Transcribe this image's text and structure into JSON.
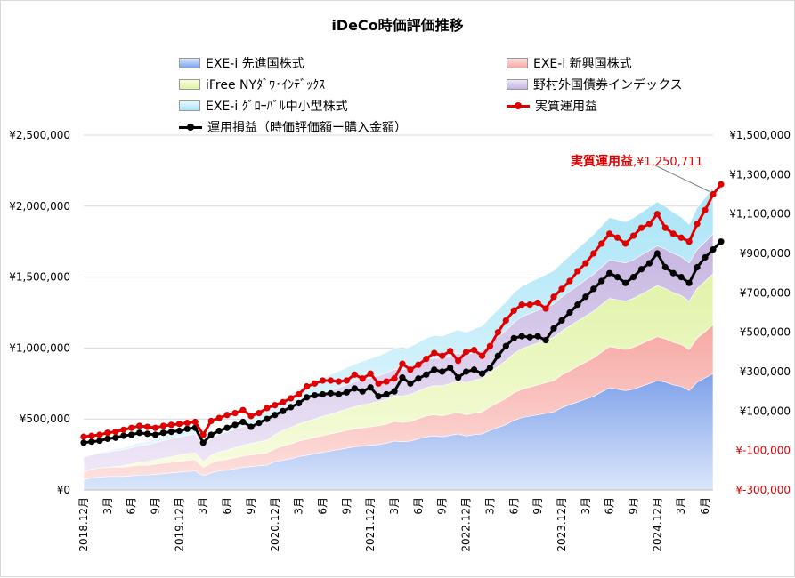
{
  "chart_data": {
    "type": "area",
    "title": "iDeCo時価評価推移",
    "x": [
      "2018.12月",
      "1",
      "2",
      "3月",
      "4",
      "5",
      "6月",
      "7",
      "8",
      "9月",
      "10",
      "11",
      "2019.12月",
      "1",
      "2",
      "3月",
      "4",
      "5",
      "6月",
      "7",
      "8",
      "9月",
      "10",
      "11",
      "2020.12月",
      "1",
      "2",
      "3月",
      "4",
      "5",
      "6月",
      "7",
      "8",
      "9月",
      "10",
      "11",
      "2021.12月",
      "1",
      "2",
      "3月",
      "4",
      "5",
      "6月",
      "7",
      "8",
      "9月",
      "10",
      "11",
      "2022.12月",
      "1",
      "2",
      "3月",
      "4",
      "5",
      "6月",
      "7",
      "8",
      "9月",
      "10",
      "11",
      "2023.12月",
      "1",
      "2",
      "3月",
      "4",
      "5",
      "6月",
      "7",
      "8",
      "9月",
      "10",
      "11",
      "2024.12月",
      "1",
      "2",
      "3月",
      "4",
      "5",
      "6月",
      "7"
    ],
    "x_tick_labels": [
      "2018.12月",
      "3月",
      "6月",
      "9月",
      "2019.12月",
      "3月",
      "6月",
      "9月",
      "2020.12月",
      "3月",
      "6月",
      "9月",
      "2021.12月",
      "3月",
      "6月",
      "9月",
      "2022.12月",
      "3月",
      "6月",
      "9月",
      "2023.12月",
      "3月",
      "6月",
      "9月",
      "2024.12月",
      "3月",
      "6月"
    ],
    "y_left": {
      "min": 0,
      "max": 2500000,
      "ticks": [
        "¥0",
        "¥500,000",
        "¥1,000,000",
        "¥1,500,000",
        "¥2,000,000",
        "¥2,500,000"
      ]
    },
    "y_right": {
      "min": -300000,
      "max": 1500000,
      "ticks": [
        "¥-300,000",
        "¥-100,000",
        "¥100,000",
        "¥300,000",
        "¥500,000",
        "¥700,000",
        "¥900,000",
        "¥1,100,000",
        "¥1,300,000",
        "¥1,500,000"
      ],
      "negative_color": "#e00000"
    },
    "grid": true,
    "legend_position": "top",
    "stacked_series": [
      {
        "name": "EXE-i 先進国株式",
        "color_top": "#dbe6fb",
        "color_bottom": "#7ea1ea",
        "values": [
          70000,
          85000,
          90000,
          95000,
          95000,
          95000,
          100000,
          105000,
          105000,
          110000,
          115000,
          120000,
          125000,
          130000,
          135000,
          100000,
          120000,
          135000,
          140000,
          150000,
          160000,
          165000,
          170000,
          175000,
          200000,
          210000,
          220000,
          235000,
          245000,
          255000,
          265000,
          275000,
          285000,
          295000,
          305000,
          310000,
          315000,
          320000,
          330000,
          345000,
          340000,
          345000,
          360000,
          375000,
          380000,
          375000,
          385000,
          395000,
          380000,
          390000,
          395000,
          420000,
          440000,
          460000,
          490000,
          510000,
          520000,
          530000,
          540000,
          550000,
          580000,
          600000,
          620000,
          640000,
          660000,
          690000,
          720000,
          710000,
          700000,
          710000,
          730000,
          750000,
          770000,
          760000,
          740000,
          730000,
          700000,
          760000,
          790000,
          820000,
          850000
        ]
      },
      {
        "name": "EXE-i 新興国株式",
        "color_top": "#fde0de",
        "color_bottom": "#f7a8a4",
        "values": [
          60000,
          62000,
          65000,
          65000,
          66000,
          67000,
          68000,
          70000,
          70000,
          72000,
          74000,
          75000,
          76000,
          78000,
          78000,
          60000,
          70000,
          73000,
          75000,
          78000,
          80000,
          82000,
          84000,
          86000,
          90000,
          100000,
          105000,
          110000,
          112000,
          115000,
          118000,
          120000,
          122000,
          124000,
          126000,
          128000,
          130000,
          132000,
          134000,
          138000,
          136000,
          138000,
          142000,
          146000,
          150000,
          148000,
          150000,
          152000,
          150000,
          152000,
          155000,
          165000,
          175000,
          185000,
          195000,
          200000,
          205000,
          210000,
          215000,
          220000,
          230000,
          240000,
          250000,
          260000,
          270000,
          280000,
          290000,
          290000,
          290000,
          295000,
          300000,
          305000,
          310000,
          305000,
          300000,
          295000,
          290000,
          310000,
          325000,
          345000,
          360000
        ]
      },
      {
        "name": "iFree NYﾀﾞｳ･ｲﾝﾃﾞｯｸｽ",
        "color_top": "#f7fcdf",
        "color_bottom": "#e1f3a8",
        "values": [
          0,
          0,
          0,
          0,
          5000,
          10000,
          15000,
          20000,
          25000,
          30000,
          35000,
          40000,
          45000,
          48000,
          48000,
          40000,
          55000,
          60000,
          65000,
          70000,
          75000,
          80000,
          85000,
          90000,
          100000,
          110000,
          115000,
          120000,
          125000,
          130000,
          135000,
          140000,
          145000,
          150000,
          155000,
          160000,
          165000,
          170000,
          175000,
          180000,
          185000,
          190000,
          195000,
          200000,
          205000,
          210000,
          215000,
          220000,
          225000,
          230000,
          235000,
          245000,
          255000,
          265000,
          275000,
          285000,
          290000,
          295000,
          300000,
          305000,
          310000,
          315000,
          320000,
          325000,
          330000,
          335000,
          340000,
          340000,
          340000,
          345000,
          350000,
          355000,
          360000,
          355000,
          350000,
          345000,
          340000,
          350000,
          355000,
          360000,
          365000
        ]
      },
      {
        "name": "野村外国債券インデックス",
        "color_top": "#efe7f7",
        "color_bottom": "#c5b4e0",
        "values": [
          100000,
          100000,
          105000,
          105000,
          110000,
          112000,
          115000,
          118000,
          120000,
          122000,
          124000,
          126000,
          128000,
          130000,
          132000,
          110000,
          120000,
          125000,
          128000,
          130000,
          132000,
          135000,
          138000,
          140000,
          145000,
          150000,
          155000,
          158000,
          160000,
          162000,
          165000,
          168000,
          170000,
          172000,
          175000,
          178000,
          180000,
          182000,
          185000,
          188000,
          186000,
          188000,
          190000,
          192000,
          194000,
          192000,
          194000,
          196000,
          195000,
          197000,
          200000,
          205000,
          210000,
          215000,
          220000,
          225000,
          228000,
          230000,
          232000,
          235000,
          240000,
          245000,
          250000,
          255000,
          260000,
          265000,
          270000,
          270000,
          270000,
          272000,
          275000,
          278000,
          280000,
          278000,
          276000,
          274000,
          270000,
          275000,
          278000,
          280000,
          282000
        ]
      },
      {
        "name": "EXE-i ｸﾞﾛｰﾊﾞﾙ中小型株式",
        "color_top": "#e6f8fe",
        "color_bottom": "#a9e4f7",
        "values": [
          0,
          0,
          5000,
          10000,
          12000,
          15000,
          18000,
          20000,
          22000,
          25000,
          28000,
          30000,
          32000,
          34000,
          35000,
          28000,
          32000,
          35000,
          38000,
          40000,
          45000,
          50000,
          55000,
          60000,
          65000,
          70000,
          80000,
          90000,
          95000,
          100000,
          105000,
          110000,
          115000,
          120000,
          125000,
          130000,
          135000,
          140000,
          145000,
          150000,
          145000,
          148000,
          152000,
          156000,
          160000,
          158000,
          162000,
          166000,
          160000,
          165000,
          170000,
          180000,
          190000,
          200000,
          210000,
          215000,
          220000,
          225000,
          230000,
          235000,
          240000,
          250000,
          260000,
          270000,
          280000,
          290000,
          300000,
          295000,
          290000,
          295000,
          300000,
          305000,
          310000,
          300000,
          290000,
          280000,
          270000,
          295000,
          310000,
          330000,
          350000
        ]
      }
    ],
    "line_series": [
      {
        "name": "実質運用益",
        "axis": "right",
        "color": "#e00000",
        "values": [
          -30000,
          -25000,
          -20000,
          -10000,
          -5000,
          5000,
          15000,
          25000,
          20000,
          15000,
          25000,
          30000,
          35000,
          40000,
          45000,
          -20000,
          50000,
          65000,
          80000,
          90000,
          105000,
          75000,
          90000,
          115000,
          130000,
          145000,
          165000,
          185000,
          225000,
          240000,
          255000,
          255000,
          250000,
          255000,
          285000,
          265000,
          290000,
          240000,
          250000,
          265000,
          340000,
          310000,
          335000,
          365000,
          395000,
          380000,
          405000,
          355000,
          400000,
          410000,
          380000,
          430000,
          500000,
          560000,
          610000,
          640000,
          640000,
          650000,
          620000,
          680000,
          720000,
          760000,
          810000,
          850000,
          900000,
          950000,
          1000000,
          980000,
          950000,
          990000,
          1030000,
          1050000,
          1100000,
          1030000,
          1000000,
          980000,
          960000,
          1050000,
          1120000,
          1200000,
          1250711
        ]
      },
      {
        "name": "運用損益（時価評価額ー購入金額）",
        "axis": "right",
        "color": "#000000",
        "values": [
          -60000,
          -55000,
          -50000,
          -40000,
          -35000,
          -25000,
          -20000,
          -10000,
          -15000,
          -20000,
          -10000,
          -5000,
          0,
          10000,
          15000,
          -60000,
          -20000,
          0,
          15000,
          30000,
          45000,
          20000,
          40000,
          60000,
          80000,
          100000,
          120000,
          140000,
          170000,
          180000,
          185000,
          190000,
          185000,
          195000,
          215000,
          200000,
          220000,
          175000,
          185000,
          200000,
          270000,
          240000,
          265000,
          285000,
          310000,
          300000,
          320000,
          270000,
          300000,
          310000,
          290000,
          320000,
          380000,
          430000,
          470000,
          480000,
          475000,
          480000,
          460000,
          520000,
          560000,
          600000,
          640000,
          680000,
          720000,
          760000,
          800000,
          780000,
          750000,
          780000,
          820000,
          850000,
          900000,
          830000,
          800000,
          780000,
          750000,
          830000,
          880000,
          920000,
          960000
        ]
      }
    ],
    "annotation": {
      "label": "実質運用益",
      "value": "¥1,250,711",
      "color": "#e00000"
    }
  }
}
